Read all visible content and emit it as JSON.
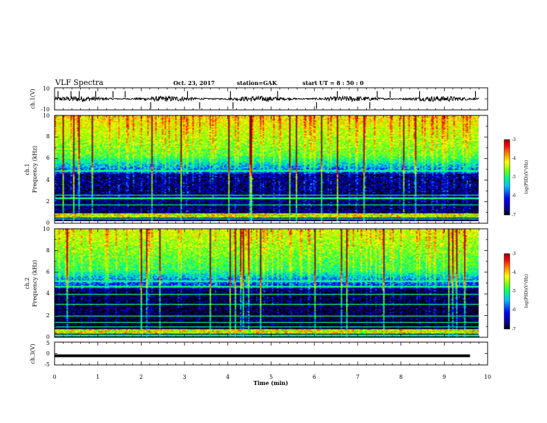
{
  "header": {
    "title": "VLF Spectra",
    "date": "Oct. 23, 2017",
    "station": "station=GAK",
    "start": "start  UT =   8  : 50 : 0"
  },
  "colors": {
    "axis": "#000000",
    "background": "#ffffff",
    "colormap": [
      "#000000",
      "#00008b",
      "#0000ff",
      "#00bfff",
      "#00ff7f",
      "#7fff00",
      "#ffff00",
      "#ff7f00",
      "#ff0000",
      "#8b0000"
    ]
  },
  "chart_data": [
    {
      "type": "line",
      "panel": "ch1-waveform",
      "ylabel": "ch.1(V)",
      "xlim": [
        0,
        10
      ],
      "ylim": [
        -10,
        10
      ],
      "yticks": [
        "10",
        "-10"
      ],
      "series": [
        {
          "x_range": [
            0,
            9.8
          ],
          "baseline": 0,
          "noise_amplitude": 2.5
        }
      ]
    },
    {
      "type": "heatmap",
      "panel": "ch1-spectrogram",
      "ylabel": "ch.1\nFrequency (kHz)",
      "xlim": [
        0,
        10
      ],
      "ylim": [
        0,
        10
      ],
      "yticks": [
        "0",
        "2",
        "4",
        "6",
        "8",
        "10"
      ],
      "colorbar": {
        "label": "log(PSD)(V²/Hz)",
        "range": [
          -7,
          -3
        ],
        "ticks": [
          "-3",
          "-4",
          "-5",
          "-6",
          "-7"
        ]
      }
    },
    {
      "type": "heatmap",
      "panel": "ch2-spectrogram",
      "ylabel": "ch.2\nFrequency (kHz)",
      "xlim": [
        0,
        10
      ],
      "ylim": [
        0,
        10
      ],
      "yticks": [
        "0",
        "2",
        "4",
        "6",
        "8",
        "10"
      ],
      "colorbar": {
        "label": "log(PSD)(V²/Hz)",
        "range": [
          -7,
          -3
        ],
        "ticks": [
          "-3",
          "-4",
          "-5",
          "-6",
          "-7"
        ]
      }
    },
    {
      "type": "line",
      "panel": "ch3-waveform",
      "ylabel": "ch.3(V)",
      "xlim": [
        0,
        10
      ],
      "ylim": [
        -5,
        5
      ],
      "yticks": [
        "5",
        "0",
        "-5"
      ],
      "series": [
        {
          "x_range": [
            0,
            9.8
          ],
          "constant": -1
        }
      ]
    }
  ],
  "xaxis": {
    "label": "Time  (min)",
    "ticks": [
      "0",
      "1",
      "2",
      "3",
      "4",
      "5",
      "6",
      "7",
      "8",
      "9",
      "10"
    ]
  }
}
